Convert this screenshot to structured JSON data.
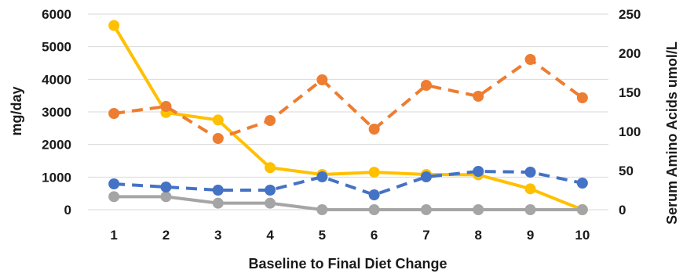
{
  "chart_data": {
    "type": "line",
    "xlabel": "Baseline to Final Diet Change",
    "ylabel_left": "mg/day",
    "ylabel_right": "Serum Amino Acids umol/L",
    "categories": [
      "1",
      "2",
      "3",
      "4",
      "5",
      "6",
      "7",
      "8",
      "9",
      "10"
    ],
    "ylim_left": [
      0,
      6000
    ],
    "yticks_left": [
      "0",
      "1000",
      "2000",
      "3000",
      "4000",
      "5000",
      "6000"
    ],
    "ylim_right": [
      0,
      250
    ],
    "yticks_right": [
      "0",
      "50",
      "100",
      "150",
      "200",
      "250"
    ],
    "grid": true,
    "series": [
      {
        "axis": "left",
        "color": "#ffc000",
        "dash": false,
        "values": [
          5650,
          2980,
          2750,
          1290,
          1080,
          1150,
          1080,
          1070,
          640,
          0
        ]
      },
      {
        "axis": "left",
        "color": "#a5a5a5",
        "dash": false,
        "values": [
          400,
          400,
          200,
          200,
          0,
          0,
          0,
          0,
          0,
          0
        ]
      },
      {
        "axis": "right",
        "color": "#ed7d31",
        "dash": true,
        "values": [
          123,
          132,
          91,
          114,
          166,
          103,
          159,
          145,
          192,
          143
        ]
      },
      {
        "axis": "right",
        "color": "#4472c4",
        "dash": true,
        "values": [
          33,
          29,
          25,
          25,
          42,
          19,
          42,
          49,
          48,
          34
        ]
      }
    ]
  }
}
